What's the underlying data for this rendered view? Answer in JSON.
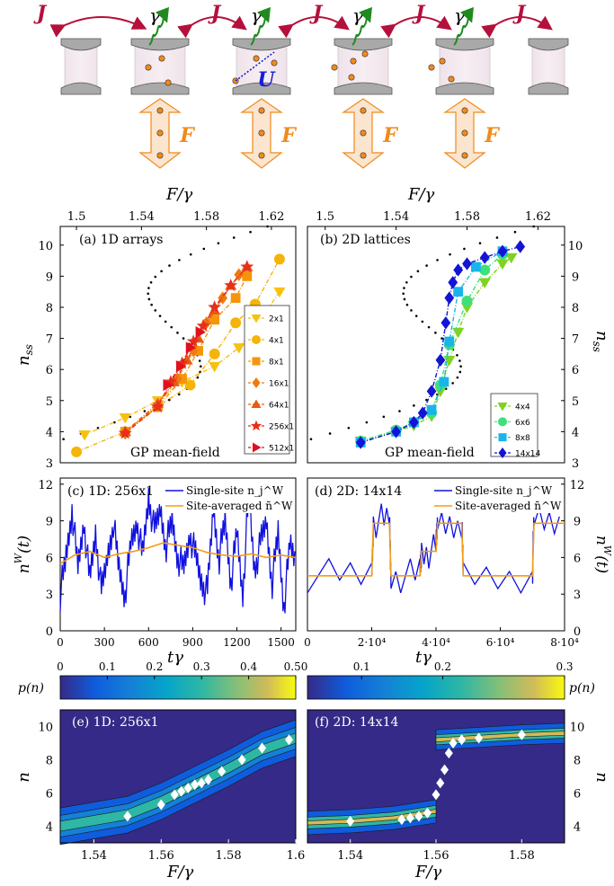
{
  "schematic": {
    "symbols": {
      "J": "J",
      "gamma": "γ",
      "U": "U",
      "F": "F"
    },
    "colors": {
      "J": "#b5103c",
      "gamma": "#1f8b1f",
      "U": "#1a1ad8",
      "F": "#f08a1c"
    }
  },
  "axis_top_label": "F/γ",
  "axis_bottom_label": "F/γ",
  "panel_a": {
    "label": "(a) 1D arrays",
    "note": "GP mean-field",
    "ylabel": "n_ss",
    "top_ticks": [
      "1.5",
      "1.54",
      "1.58",
      "1.62"
    ],
    "yticks": [
      "3",
      "4",
      "5",
      "6",
      "7",
      "8",
      "9",
      "10"
    ]
  },
  "panel_b": {
    "label": "(b) 2D lattices",
    "note": "GP mean-field",
    "ylabel": "n_ss",
    "top_ticks": [
      "1.5",
      "1.54",
      "1.58",
      "1.62"
    ],
    "yticks": [
      "3",
      "4",
      "5",
      "6",
      "7",
      "8",
      "9",
      "10"
    ]
  },
  "panel_c": {
    "label": "(c) 1D: 256x1",
    "legend": [
      "Single-site n_j^W",
      "Site-averaged n̄^W"
    ],
    "xlabel": "tγ",
    "xticks": [
      "0",
      "300",
      "600",
      "900",
      "1200",
      "1500"
    ],
    "yticks": [
      "0",
      "3",
      "6",
      "9",
      "12"
    ]
  },
  "panel_d": {
    "label": "(d) 2D: 14x14",
    "legend": [
      "Single-site n_j^W",
      "Site-averaged n̄^W"
    ],
    "xlabel": "tγ",
    "ylabel": "n^W(t)",
    "xticks": [
      "0",
      "2·10⁴",
      "4·10⁴",
      "6·10⁴",
      "8·10⁴"
    ],
    "yticks": [
      "0",
      "3",
      "6",
      "9",
      "12"
    ]
  },
  "colorbar_left": {
    "ticks": [
      "0",
      "0.1",
      "0.2",
      "0.3",
      "0.4",
      "0.50"
    ],
    "label": "p(n)"
  },
  "colorbar_right": {
    "ticks": [
      "0.1",
      "0.2",
      "0.3"
    ],
    "label": "p(n)"
  },
  "panel_e": {
    "label": "(e) 1D: 256x1",
    "ylabel": "n",
    "xlabel": "F/γ",
    "xticks": [
      "1.54",
      "1.56",
      "1.58",
      "1.6"
    ],
    "yticks": [
      "4",
      "6",
      "8",
      "10"
    ]
  },
  "panel_f": {
    "label": "(f) 2D: 14x14",
    "ylabel": "n",
    "xlabel": "F/γ",
    "xticks": [
      "1.54",
      "1.56",
      "1.58"
    ],
    "yticks": [
      "4",
      "6",
      "8",
      "10"
    ]
  },
  "chart_data": [
    {
      "type": "scatter",
      "panel": "a",
      "xlim": [
        1.49,
        1.635
      ],
      "ylim": [
        3,
        10.6
      ],
      "series": [
        {
          "name": "2x1",
          "color": "#f5c211",
          "marker": "triangle-down",
          "x": [
            1.505,
            1.53,
            1.55,
            1.565,
            1.585,
            1.6,
            1.612,
            1.625
          ],
          "y": [
            3.9,
            4.45,
            5.0,
            5.6,
            6.1,
            6.7,
            7.5,
            8.5
          ]
        },
        {
          "name": "4x1",
          "color": "#f5b40a",
          "marker": "circle",
          "x": [
            1.5,
            1.53,
            1.55,
            1.57,
            1.585,
            1.598,
            1.61,
            1.625
          ],
          "y": [
            3.35,
            4.0,
            4.8,
            5.5,
            6.5,
            7.5,
            8.1,
            9.55
          ]
        },
        {
          "name": "8x1",
          "color": "#f5960a",
          "marker": "square",
          "x": [
            1.53,
            1.55,
            1.565,
            1.575,
            1.585,
            1.598,
            1.605
          ],
          "y": [
            4.0,
            4.8,
            5.7,
            6.6,
            7.6,
            8.3,
            9.0
          ]
        },
        {
          "name": "16x1",
          "color": "#f07a10",
          "marker": "diamond",
          "x": [
            1.53,
            1.55,
            1.562,
            1.572,
            1.58,
            1.59,
            1.6
          ],
          "y": [
            3.95,
            4.85,
            5.7,
            6.6,
            7.5,
            8.3,
            9.05
          ]
        },
        {
          "name": "64x1",
          "color": "#ea5a12",
          "marker": "triangle-up",
          "x": [
            1.53,
            1.55,
            1.56,
            1.568,
            1.575,
            1.585,
            1.595,
            1.605
          ],
          "y": [
            4.0,
            4.9,
            5.6,
            6.3,
            7.0,
            7.9,
            8.7,
            9.3
          ]
        },
        {
          "name": "256x1",
          "color": "#e6301a",
          "marker": "star",
          "x": [
            1.53,
            1.55,
            1.558,
            1.565,
            1.572,
            1.578,
            1.585,
            1.595,
            1.605
          ],
          "y": [
            3.95,
            4.8,
            5.6,
            6.2,
            6.9,
            7.4,
            8.0,
            8.7,
            9.3
          ]
        },
        {
          "name": "512x1",
          "color": "#e0101e",
          "marker": "triangle-right",
          "x": [
            1.556,
            1.564,
            1.57,
            1.576
          ],
          "y": [
            5.5,
            6.1,
            6.7,
            7.2
          ]
        }
      ]
    },
    {
      "type": "scatter",
      "panel": "b",
      "xlim": [
        1.49,
        1.635
      ],
      "ylim": [
        3,
        10.6
      ],
      "series": [
        {
          "name": "4x4",
          "color": "#7ed321",
          "marker": "triangle-down",
          "x": [
            1.52,
            1.54,
            1.55,
            1.56,
            1.565,
            1.57,
            1.575,
            1.58,
            1.59,
            1.6,
            1.605
          ],
          "y": [
            3.7,
            4.0,
            4.2,
            4.5,
            5.3,
            6.3,
            7.2,
            8.0,
            8.8,
            9.4,
            9.6
          ]
        },
        {
          "name": "6x6",
          "color": "#3ee07a",
          "marker": "circle",
          "x": [
            1.52,
            1.54,
            1.55,
            1.56,
            1.565,
            1.57,
            1.58,
            1.59,
            1.6
          ],
          "y": [
            3.7,
            4.05,
            4.3,
            4.6,
            5.5,
            6.8,
            8.2,
            9.2,
            9.7
          ]
        },
        {
          "name": "8x8",
          "color": "#19b4ea",
          "marker": "square",
          "x": [
            1.52,
            1.54,
            1.55,
            1.56,
            1.567,
            1.57,
            1.575,
            1.585,
            1.6
          ],
          "y": [
            3.65,
            4.0,
            4.3,
            4.7,
            5.6,
            6.9,
            8.5,
            9.3,
            9.8
          ]
        },
        {
          "name": "14x14",
          "color": "#1414d4",
          "marker": "diamond",
          "x": [
            1.52,
            1.54,
            1.55,
            1.555,
            1.56,
            1.565,
            1.568,
            1.57,
            1.572,
            1.575,
            1.58,
            1.59,
            1.6,
            1.61
          ],
          "y": [
            3.65,
            4.0,
            4.3,
            4.6,
            5.3,
            6.3,
            7.5,
            8.3,
            8.8,
            9.2,
            9.4,
            9.6,
            9.8,
            9.95
          ]
        }
      ]
    },
    {
      "type": "line",
      "panel": "c",
      "xlim": [
        0,
        1600
      ],
      "ylim": [
        0,
        12.5
      ],
      "series": [
        {
          "name": "Single-site n_j^W",
          "color": "#1010e0",
          "x": [
            0,
            40,
            80,
            120,
            160,
            200,
            240,
            280,
            320,
            360,
            400,
            440,
            480,
            520,
            560,
            600,
            640,
            680,
            720,
            760,
            800,
            840,
            880,
            920,
            960,
            1000,
            1040,
            1080,
            1120,
            1160,
            1200,
            1240,
            1280,
            1320,
            1360,
            1400,
            1440,
            1480,
            1520,
            1560,
            1600
          ],
          "y": [
            3,
            6,
            10,
            5,
            9,
            4,
            8,
            3,
            6,
            9,
            5,
            3,
            7,
            9,
            6,
            11,
            8,
            10,
            7,
            9,
            6,
            5,
            8,
            6,
            4,
            3,
            10,
            6,
            9,
            4,
            8,
            3,
            11,
            5,
            7,
            9,
            4,
            8,
            2,
            7,
            6
          ]
        },
        {
          "name": "Site-averaged n̄^W",
          "color": "#f39c12",
          "x": [
            0,
            100,
            200,
            300,
            400,
            500,
            600,
            700,
            800,
            900,
            1000,
            1100,
            1200,
            1300,
            1400,
            1500,
            1600
          ],
          "y": [
            5.5,
            6.2,
            6.5,
            6.0,
            6.3,
            6.5,
            6.8,
            7.2,
            7.0,
            6.8,
            6.4,
            6.2,
            6.1,
            6.3,
            6.0,
            6.2,
            6.0
          ]
        }
      ]
    },
    {
      "type": "line",
      "panel": "d",
      "xlim": [
        0,
        80000
      ],
      "ylim": [
        0,
        12.5
      ],
      "series": [
        {
          "name": "Single-site n_j^W",
          "color": "#1010e0",
          "x": [
            0,
            20000,
            20500,
            25500,
            26000,
            35000,
            35500,
            40000,
            40500,
            48000,
            48500,
            70000,
            70500,
            80000
          ],
          "y": [
            4.5,
            4.5,
            9,
            9,
            4.5,
            4.5,
            6.5,
            6.5,
            9,
            9,
            4.5,
            4.5,
            9,
            9
          ]
        },
        {
          "name": "Site-averaged n̄^W",
          "color": "#f39c12",
          "x": [
            0,
            20000,
            20500,
            25500,
            26000,
            35000,
            35500,
            40000,
            40500,
            48000,
            48500,
            70000,
            70500,
            80000
          ],
          "y": [
            4.5,
            4.5,
            8.8,
            8.8,
            4.5,
            4.5,
            6.5,
            6.5,
            8.8,
            8.8,
            4.5,
            4.5,
            8.8,
            8.8
          ]
        }
      ]
    },
    {
      "type": "heatmap",
      "panel": "e",
      "xlim": [
        1.53,
        1.6
      ],
      "ylim": [
        3,
        11
      ],
      "peak_markers": {
        "x": [
          1.55,
          1.56,
          1.564,
          1.566,
          1.568,
          1.57,
          1.572,
          1.574,
          1.578,
          1.584,
          1.59,
          1.598
        ],
        "y": [
          4.6,
          5.3,
          5.9,
          6.1,
          6.3,
          6.5,
          6.6,
          6.8,
          7.3,
          8.0,
          8.7,
          9.2
        ]
      }
    },
    {
      "type": "heatmap",
      "panel": "f",
      "xlim": [
        1.53,
        1.59
      ],
      "ylim": [
        3,
        11
      ],
      "peak_markers": {
        "x": [
          1.54,
          1.552,
          1.554,
          1.556,
          1.558,
          1.56,
          1.561,
          1.562,
          1.563,
          1.564,
          1.566,
          1.57,
          1.58
        ],
        "y": [
          4.3,
          4.4,
          4.5,
          4.6,
          4.8,
          5.9,
          6.6,
          7.4,
          8.4,
          9.0,
          9.2,
          9.3,
          9.5
        ]
      }
    }
  ]
}
